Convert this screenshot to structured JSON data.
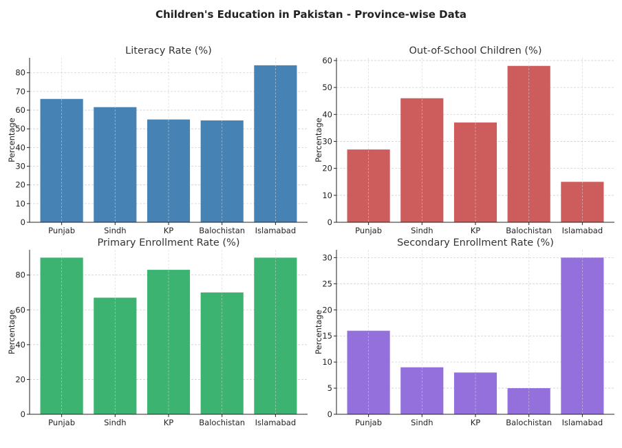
{
  "title": "Children's Education in Pakistan - Province-wise Data",
  "chart_data": [
    {
      "type": "bar",
      "title": "Literacy Rate (%)",
      "ylabel": "Percentage",
      "xlabel": "",
      "categories": [
        "Punjab",
        "Sindh",
        "KP",
        "Balochistan",
        "Islamabad"
      ],
      "values": [
        66,
        61.6,
        55,
        54.5,
        84
      ],
      "color": "#4682b4",
      "ylim": [
        0,
        88
      ],
      "yticks": [
        0,
        10,
        20,
        30,
        40,
        50,
        60,
        70,
        80
      ],
      "grid": true
    },
    {
      "type": "bar",
      "title": "Out-of-School Children (%)",
      "ylabel": "Percentage",
      "xlabel": "",
      "categories": [
        "Punjab",
        "Sindh",
        "KP",
        "Balochistan",
        "Islamabad"
      ],
      "values": [
        27,
        46,
        37,
        58,
        15
      ],
      "color": "#cd5c5c",
      "ylim": [
        0,
        61
      ],
      "yticks": [
        0,
        10,
        20,
        30,
        40,
        50,
        60
      ],
      "grid": true
    },
    {
      "type": "bar",
      "title": "Primary Enrollment Rate (%)",
      "ylabel": "Percentage",
      "xlabel": "",
      "categories": [
        "Punjab",
        "Sindh",
        "KP",
        "Balochistan",
        "Islamabad"
      ],
      "values": [
        90,
        67,
        83,
        70,
        90
      ],
      "color": "#3cb371",
      "ylim": [
        0,
        94.5
      ],
      "yticks": [
        0,
        20,
        40,
        60,
        80
      ],
      "grid": true
    },
    {
      "type": "bar",
      "title": "Secondary Enrollment Rate (%)",
      "ylabel": "Percentage",
      "xlabel": "",
      "categories": [
        "Punjab",
        "Sindh",
        "KP",
        "Balochistan",
        "Islamabad"
      ],
      "values": [
        16,
        9,
        8,
        5,
        30
      ],
      "color": "#9370db",
      "ylim": [
        0,
        31.5
      ],
      "yticks": [
        0,
        5,
        10,
        15,
        20,
        25,
        30
      ],
      "grid": true
    }
  ]
}
